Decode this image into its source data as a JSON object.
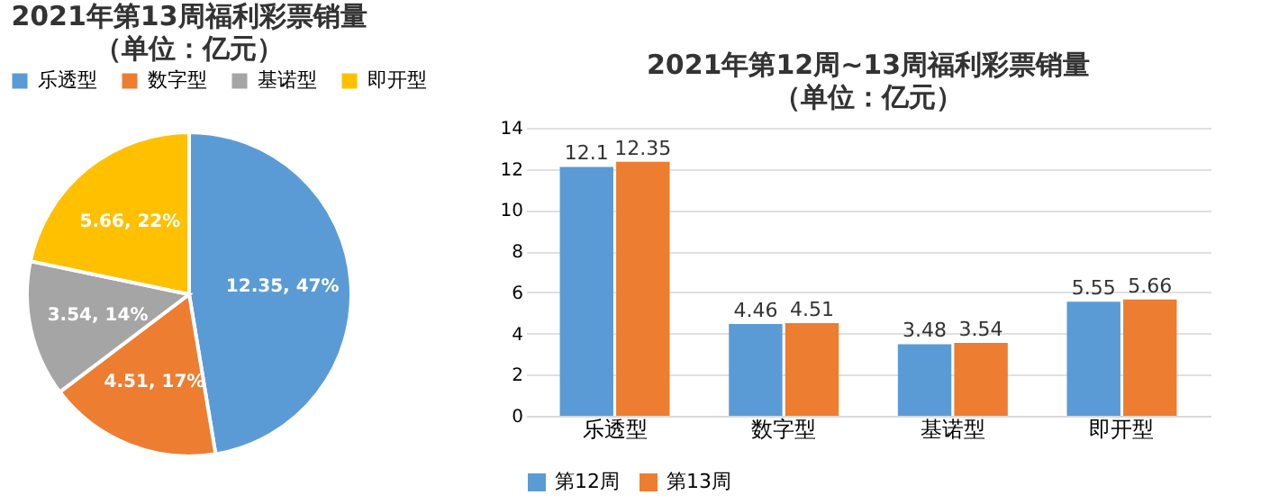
{
  "chart_data": [
    {
      "type": "pie",
      "title": "2021年第13周福利彩票销量",
      "subtitle": "（单位：亿元）",
      "categories": [
        "乐透型",
        "数字型",
        "基诺型",
        "即开型"
      ],
      "values": [
        12.35,
        4.51,
        3.54,
        5.66
      ],
      "colors": [
        "#5b9bd5",
        "#ed7d31",
        "#a5a5a5",
        "#ffc000"
      ],
      "value_labels": [
        "12.35, 47%",
        "4.51, 17%",
        "3.54, 14%",
        "5.66, 22%"
      ],
      "legend": "top"
    },
    {
      "type": "bar",
      "title": "2021年第12周~13周福利彩票销量",
      "subtitle": "（单位：亿元）",
      "categories": [
        "乐透型",
        "数字型",
        "基诺型",
        "即开型"
      ],
      "series": [
        {
          "name": "第12周",
          "color": "#5b9bd5",
          "values": [
            12.1,
            4.46,
            3.48,
            5.55
          ]
        },
        {
          "name": "第13周",
          "color": "#ed7d31",
          "values": [
            12.35,
            4.51,
            3.54,
            5.66
          ]
        }
      ],
      "ylim": [
        0,
        14
      ],
      "yticks": [
        0,
        2,
        4,
        6,
        8,
        10,
        12,
        14
      ],
      "grid": "y",
      "data_labels": true,
      "legend": "bottom"
    }
  ]
}
